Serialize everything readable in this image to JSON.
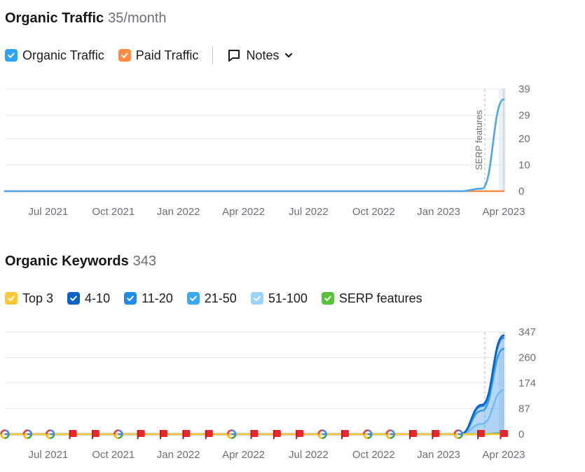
{
  "traffic": {
    "title": "Organic Traffic",
    "metric": "35/month",
    "legend": [
      {
        "label": "Organic Traffic",
        "color": "#2ea3f2",
        "checked": true
      },
      {
        "label": "Paid Traffic",
        "color": "#ff8c42",
        "checked": true
      }
    ],
    "notes_label": "Notes"
  },
  "keywords": {
    "title": "Organic Keywords",
    "metric": "343",
    "legend": [
      {
        "label": "Top 3",
        "color": "#ffc733",
        "checked": true
      },
      {
        "label": "4-10",
        "color": "#0a62c9",
        "checked": true
      },
      {
        "label": "11-20",
        "color": "#1f8ceb",
        "checked": true
      },
      {
        "label": "21-50",
        "color": "#3aa9f5",
        "checked": true
      },
      {
        "label": "51-100",
        "color": "#9fd3ff",
        "checked": true
      },
      {
        "label": "SERP features",
        "color": "#59c13b",
        "checked": true
      }
    ]
  },
  "chart_data": [
    {
      "type": "line",
      "title": "Organic Traffic",
      "x": [
        "2021-05",
        "2021-06",
        "2021-07",
        "2021-08",
        "2021-09",
        "2021-10",
        "2021-11",
        "2021-12",
        "2022-01",
        "2022-02",
        "2022-03",
        "2022-04",
        "2022-05",
        "2022-06",
        "2022-07",
        "2022-08",
        "2022-09",
        "2022-10",
        "2022-11",
        "2022-12",
        "2023-01",
        "2023-02",
        "2023-03",
        "2023-04"
      ],
      "x_tick_labels": [
        "Jul 2021",
        "Oct 2021",
        "Jan 2022",
        "Apr 2022",
        "Jul 2022",
        "Oct 2022",
        "Jan 2023",
        "Apr 2023"
      ],
      "series": [
        {
          "name": "Organic Traffic",
          "color": "#4aa5ec",
          "values": [
            0,
            0,
            0,
            0,
            0,
            0,
            0,
            0,
            0,
            0,
            0,
            0,
            0,
            0,
            0,
            0,
            0,
            0,
            0,
            0,
            0,
            0,
            1,
            35
          ]
        },
        {
          "name": "Paid Traffic",
          "color": "#ff8c42",
          "values": [
            0,
            0,
            0,
            0,
            0,
            0,
            0,
            0,
            0,
            0,
            0,
            0,
            0,
            0,
            0,
            0,
            0,
            0,
            0,
            0,
            0,
            0,
            0,
            0
          ]
        }
      ],
      "y_ticks": [
        0,
        10,
        20,
        29,
        39
      ],
      "ylim": [
        0,
        39
      ],
      "annotations": [
        {
          "label": "SERP features",
          "x": "2023-03"
        }
      ],
      "grid": true,
      "legend": "top-left"
    },
    {
      "type": "area",
      "title": "Organic Keywords",
      "x": [
        "2021-05",
        "2021-06",
        "2021-07",
        "2021-08",
        "2021-09",
        "2021-10",
        "2021-11",
        "2021-12",
        "2022-01",
        "2022-02",
        "2022-03",
        "2022-04",
        "2022-05",
        "2022-06",
        "2022-07",
        "2022-08",
        "2022-09",
        "2022-10",
        "2022-11",
        "2022-12",
        "2023-01",
        "2023-02",
        "2023-03",
        "2023-04"
      ],
      "x_tick_labels": [
        "Jul 2021",
        "Oct 2021",
        "Jan 2022",
        "Apr 2022",
        "Jul 2022",
        "Oct 2022",
        "Jan 2023",
        "Apr 2023"
      ],
      "series": [
        {
          "name": "Top 3",
          "color": "#ffc733",
          "values": [
            0,
            0,
            0,
            0,
            0,
            0,
            0,
            0,
            0,
            0,
            0,
            0,
            0,
            0,
            0,
            0,
            0,
            0,
            0,
            0,
            0,
            0,
            0,
            0
          ]
        },
        {
          "name": "4-10",
          "color": "#0a62c9",
          "values": [
            0,
            0,
            0,
            0,
            0,
            0,
            0,
            0,
            0,
            0,
            0,
            0,
            0,
            0,
            0,
            0,
            0,
            0,
            0,
            0,
            0,
            0,
            100,
            335
          ]
        },
        {
          "name": "11-20",
          "color": "#1f8ceb",
          "values": [
            0,
            0,
            0,
            0,
            0,
            0,
            0,
            0,
            0,
            0,
            0,
            0,
            0,
            0,
            0,
            0,
            0,
            0,
            0,
            0,
            0,
            0,
            95,
            327
          ]
        },
        {
          "name": "21-50",
          "color": "#3aa9f5",
          "values": [
            0,
            0,
            0,
            0,
            0,
            0,
            0,
            0,
            0,
            0,
            0,
            0,
            0,
            0,
            0,
            0,
            0,
            0,
            0,
            0,
            0,
            0,
            80,
            290
          ]
        },
        {
          "name": "51-100",
          "color": "#9fd3ff",
          "values": [
            0,
            0,
            0,
            0,
            0,
            0,
            0,
            0,
            0,
            0,
            0,
            0,
            0,
            0,
            0,
            0,
            0,
            0,
            0,
            0,
            0,
            0,
            35,
            150
          ]
        },
        {
          "name": "SERP features",
          "color": "#59c13b",
          "values": [
            0,
            0,
            0,
            0,
            0,
            0,
            0,
            0,
            0,
            0,
            0,
            0,
            0,
            0,
            0,
            0,
            0,
            0,
            0,
            0,
            0,
            0,
            0,
            3
          ]
        }
      ],
      "y_ticks": [
        0,
        87,
        174,
        260,
        347
      ],
      "ylim": [
        0,
        347
      ],
      "markers": [
        "google",
        "google",
        "google",
        "flag",
        "flag",
        "google",
        "flag",
        "flag",
        "flag",
        "flag",
        "google",
        "flag",
        "flag",
        "flag",
        "google",
        "flag",
        "google",
        "google",
        "flag",
        "flag",
        "google",
        "flag",
        "flag"
      ],
      "annotations": [
        {
          "label": "",
          "x": "2023-03"
        }
      ],
      "grid": true,
      "legend": "top-left"
    }
  ]
}
